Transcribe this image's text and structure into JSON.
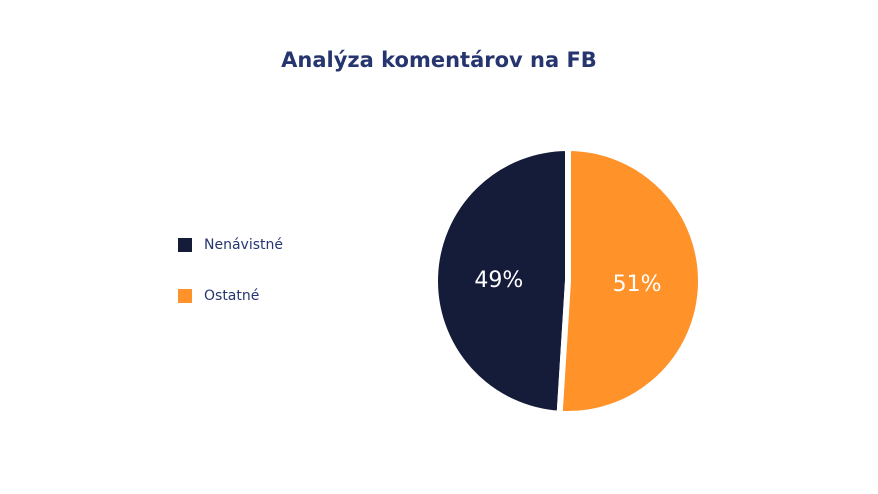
{
  "chart_data": {
    "type": "pie",
    "title": "Analýza komentárov na FB",
    "categories": [
      "Nenávistné",
      "Ostatné"
    ],
    "values": [
      49,
      51
    ],
    "value_labels": [
      "49%",
      "51%"
    ],
    "colors": [
      "#141c3a",
      "#ff9228"
    ],
    "legend": "left"
  }
}
